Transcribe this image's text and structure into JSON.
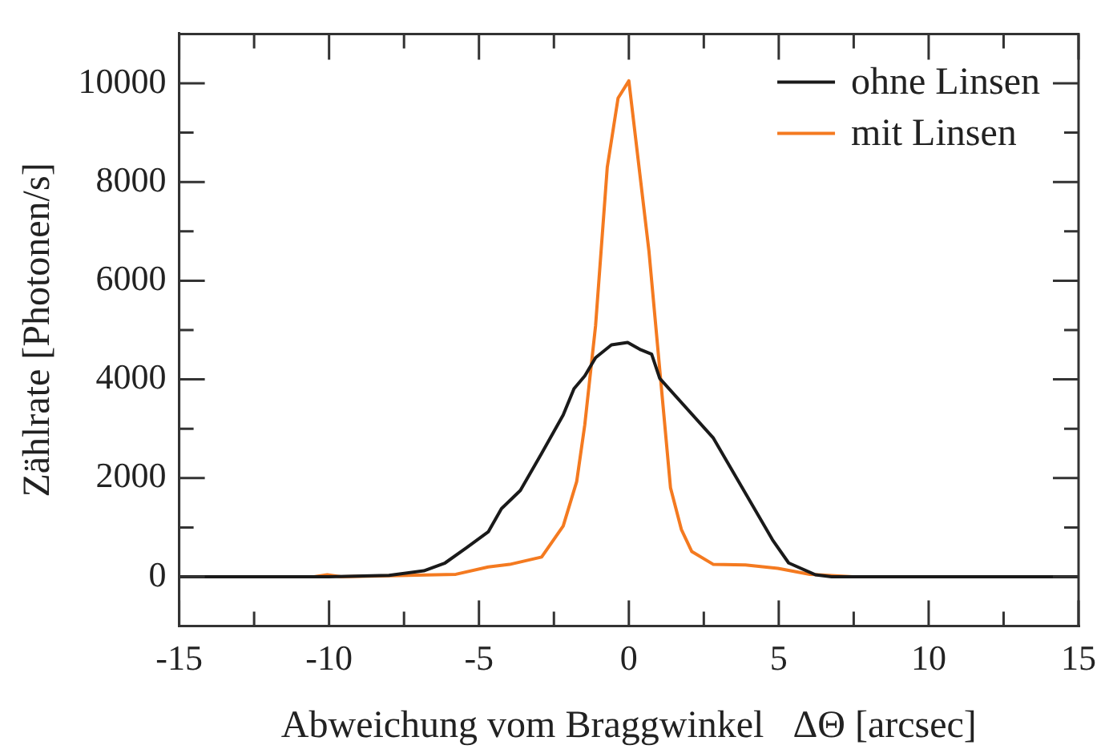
{
  "chart_data": {
    "type": "line",
    "xlabel": "Abweichung vom Braggwinkel   ΔΘ [arcsec]",
    "ylabel": "Zählrate [Photonen/s]",
    "xlim": [
      -15,
      15
    ],
    "ylim": [
      -1000,
      11000
    ],
    "xticks": [
      -15,
      {
        "value": -12.5,
        "label": null
      },
      -10,
      {
        "value": -7.5,
        "label": null
      },
      -5,
      {
        "value": -2.5,
        "label": null
      },
      0,
      {
        "value": 2.5,
        "label": null
      },
      5,
      {
        "value": 7.5,
        "label": null
      },
      10,
      {
        "value": 12.5,
        "label": null
      },
      15
    ],
    "yticks": [
      0,
      {
        "value": 1000,
        "label": null
      },
      2000,
      {
        "value": 3000,
        "label": null
      },
      4000,
      {
        "value": 5000,
        "label": null
      },
      6000,
      {
        "value": 7000,
        "label": null
      },
      8000,
      {
        "value": 9000,
        "label": null
      },
      10000
    ],
    "grid": false,
    "legend": "top right",
    "marker": "none",
    "line_style": "solid",
    "series": [
      {
        "name": "ohne Linsen",
        "color": "#1a1a1a",
        "x": [
          -15,
          -10,
          -8,
          -6.84,
          -6.13,
          -5.41,
          -4.69,
          -4.25,
          -3.62,
          -2.91,
          -2.19,
          -1.83,
          -1.47,
          -1.11,
          -0.58,
          -0.04,
          0.4,
          0.76,
          1.03,
          2.82,
          4.79,
          5.33,
          6.22,
          6.76,
          15
        ],
        "values": [
          0,
          0,
          30,
          120,
          280,
          590,
          910,
          1380,
          1750,
          2500,
          3280,
          3810,
          4070,
          4440,
          4700,
          4750,
          4600,
          4510,
          4020,
          2810,
          750,
          280,
          40,
          0,
          0
        ]
      },
      {
        "name": "mit Linsen",
        "color": "#f47a20",
        "x": [
          -15,
          -10.5,
          -10.06,
          -9.6,
          -5.77,
          -4.69,
          -3.98,
          -2.91,
          -2.19,
          -1.74,
          -1.47,
          -1.11,
          -0.72,
          -0.36,
          0,
          0.67,
          1.39,
          1.75,
          2.1,
          2.82,
          3.89,
          4.97,
          6.04,
          7.47,
          15
        ],
        "values": [
          0,
          0,
          40,
          0,
          50,
          200,
          250,
          400,
          1030,
          1930,
          3080,
          5090,
          8300,
          9700,
          10050,
          6600,
          1800,
          960,
          510,
          250,
          240,
          170,
          50,
          0,
          0
        ]
      }
    ]
  }
}
